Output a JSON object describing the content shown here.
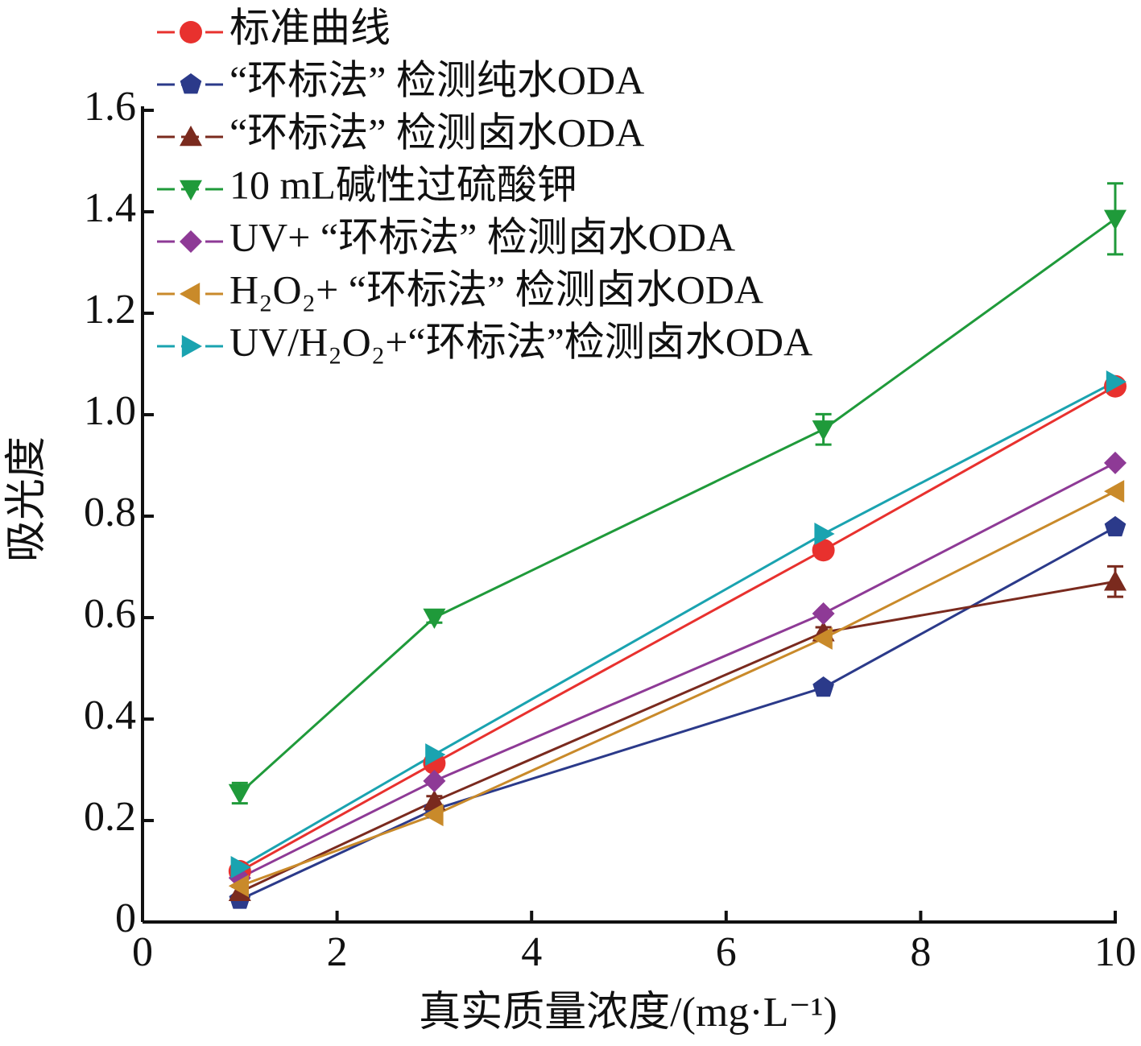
{
  "chart_data": {
    "type": "line",
    "x_label": "真实质量浓度/(mg·L⁻¹)",
    "y_label": "吸光度",
    "x": [
      1,
      3,
      7,
      10
    ],
    "xlim": [
      0,
      10
    ],
    "xticks": [
      0,
      2,
      4,
      6,
      8,
      10
    ],
    "ylim": [
      0,
      1.6
    ],
    "yticks": [
      0,
      0.2,
      0.4,
      0.6,
      0.8,
      {
        "value": 1,
        "label": "1.0"
      },
      1.2,
      1.4,
      1.6
    ],
    "legend": "top-left",
    "series": [
      {
        "name": "标准曲线",
        "color": "#e8312e",
        "marker": "circle",
        "values": [
          0.1,
          0.313,
          0.733,
          1.056
        ]
      },
      {
        "name": "“环标法” 检测纯水ODA",
        "color": "#2b3a8a",
        "marker": "pentagon",
        "values": [
          0.044,
          0.222,
          0.462,
          0.778
        ]
      },
      {
        "name": "“环标法” 检测卤水ODA",
        "color": "#7a2a1e",
        "marker": "triangle-up",
        "values": [
          0.059,
          0.238,
          0.571,
          0.671
        ],
        "errors": [
          0.01,
          0.01,
          0.01,
          0.03
        ]
      },
      {
        "name": "10 mL碱性过硫酸钾",
        "color": "#1f9a3a",
        "marker": "triangle-down",
        "values": [
          0.254,
          0.6,
          0.971,
          1.386
        ],
        "errors": [
          0.02,
          0.01,
          0.03,
          0.07
        ]
      },
      {
        "name": "UV+ “环标法” 检测卤水ODA",
        "color": "#8e3a96",
        "marker": "diamond",
        "values": [
          0.087,
          0.278,
          0.608,
          0.905
        ]
      },
      {
        "name": "H₂O₂+ “环标法” 检测卤水ODA",
        "color": "#c98a2a",
        "marker": "triangle-left",
        "values": [
          0.071,
          0.211,
          0.559,
          0.849
        ]
      },
      {
        "name": "UV/H₂O₂+“环标法”检测卤水ODA",
        "color": "#1aa3b0",
        "marker": "triangle-right",
        "values": [
          0.108,
          0.33,
          0.765,
          1.065
        ]
      }
    ]
  }
}
